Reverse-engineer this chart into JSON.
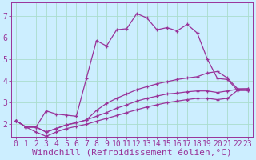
{
  "xlabel": "Windchill (Refroidissement éolien,°C)",
  "background_color": "#cceeff",
  "line_color": "#993399",
  "grid_color": "#aaddcc",
  "xlim": [
    -0.5,
    23.5
  ],
  "ylim": [
    1.4,
    7.6
  ],
  "xticks": [
    0,
    1,
    2,
    3,
    4,
    5,
    6,
    7,
    8,
    9,
    10,
    11,
    12,
    13,
    14,
    15,
    16,
    17,
    18,
    19,
    20,
    21,
    22,
    23
  ],
  "yticks": [
    2,
    3,
    4,
    5,
    6,
    7
  ],
  "line1_x": [
    0,
    1,
    2,
    3,
    4,
    5,
    6,
    7,
    8,
    9,
    10,
    11,
    12,
    13,
    14,
    15,
    16,
    17,
    18,
    19,
    20,
    21,
    22,
    23
  ],
  "line1_y": [
    2.15,
    1.85,
    1.85,
    2.6,
    2.45,
    2.4,
    2.35,
    4.1,
    5.85,
    5.6,
    6.35,
    6.4,
    7.1,
    6.9,
    6.35,
    6.45,
    6.3,
    6.6,
    6.2,
    5.0,
    4.1,
    4.05,
    3.55,
    3.55
  ],
  "line2_x": [
    0,
    1,
    2,
    3,
    4,
    5,
    6,
    7,
    8,
    9,
    10,
    11,
    12,
    13,
    14,
    15,
    16,
    17,
    18,
    19,
    20,
    21,
    22,
    23
  ],
  "line2_y": [
    2.15,
    1.85,
    1.85,
    1.62,
    1.78,
    1.95,
    2.05,
    2.18,
    2.35,
    2.52,
    2.72,
    2.88,
    3.05,
    3.18,
    3.28,
    3.38,
    3.42,
    3.48,
    3.52,
    3.52,
    3.45,
    3.52,
    3.6,
    3.62
  ],
  "line3_x": [
    0,
    1,
    2,
    3,
    4,
    5,
    6,
    7,
    8,
    9,
    10,
    11,
    12,
    13,
    14,
    15,
    16,
    17,
    18,
    19,
    20,
    21,
    22,
    23
  ],
  "line3_y": [
    2.15,
    1.85,
    1.85,
    1.62,
    1.78,
    1.95,
    2.05,
    2.18,
    2.62,
    2.95,
    3.18,
    3.38,
    3.58,
    3.72,
    3.85,
    3.95,
    4.05,
    4.12,
    4.18,
    4.35,
    4.42,
    4.12,
    3.62,
    3.62
  ],
  "line4_x": [
    0,
    1,
    2,
    3,
    4,
    5,
    6,
    7,
    8,
    9,
    10,
    11,
    12,
    13,
    14,
    15,
    16,
    17,
    18,
    19,
    20,
    21,
    22,
    23
  ],
  "line4_y": [
    2.15,
    1.85,
    1.62,
    1.42,
    1.62,
    1.78,
    1.88,
    1.98,
    2.12,
    2.25,
    2.38,
    2.52,
    2.65,
    2.78,
    2.88,
    2.98,
    3.05,
    3.12,
    3.18,
    3.18,
    3.12,
    3.18,
    3.55,
    3.55
  ],
  "font_family": "monospace",
  "tick_fontsize": 7,
  "xlabel_fontsize": 8
}
